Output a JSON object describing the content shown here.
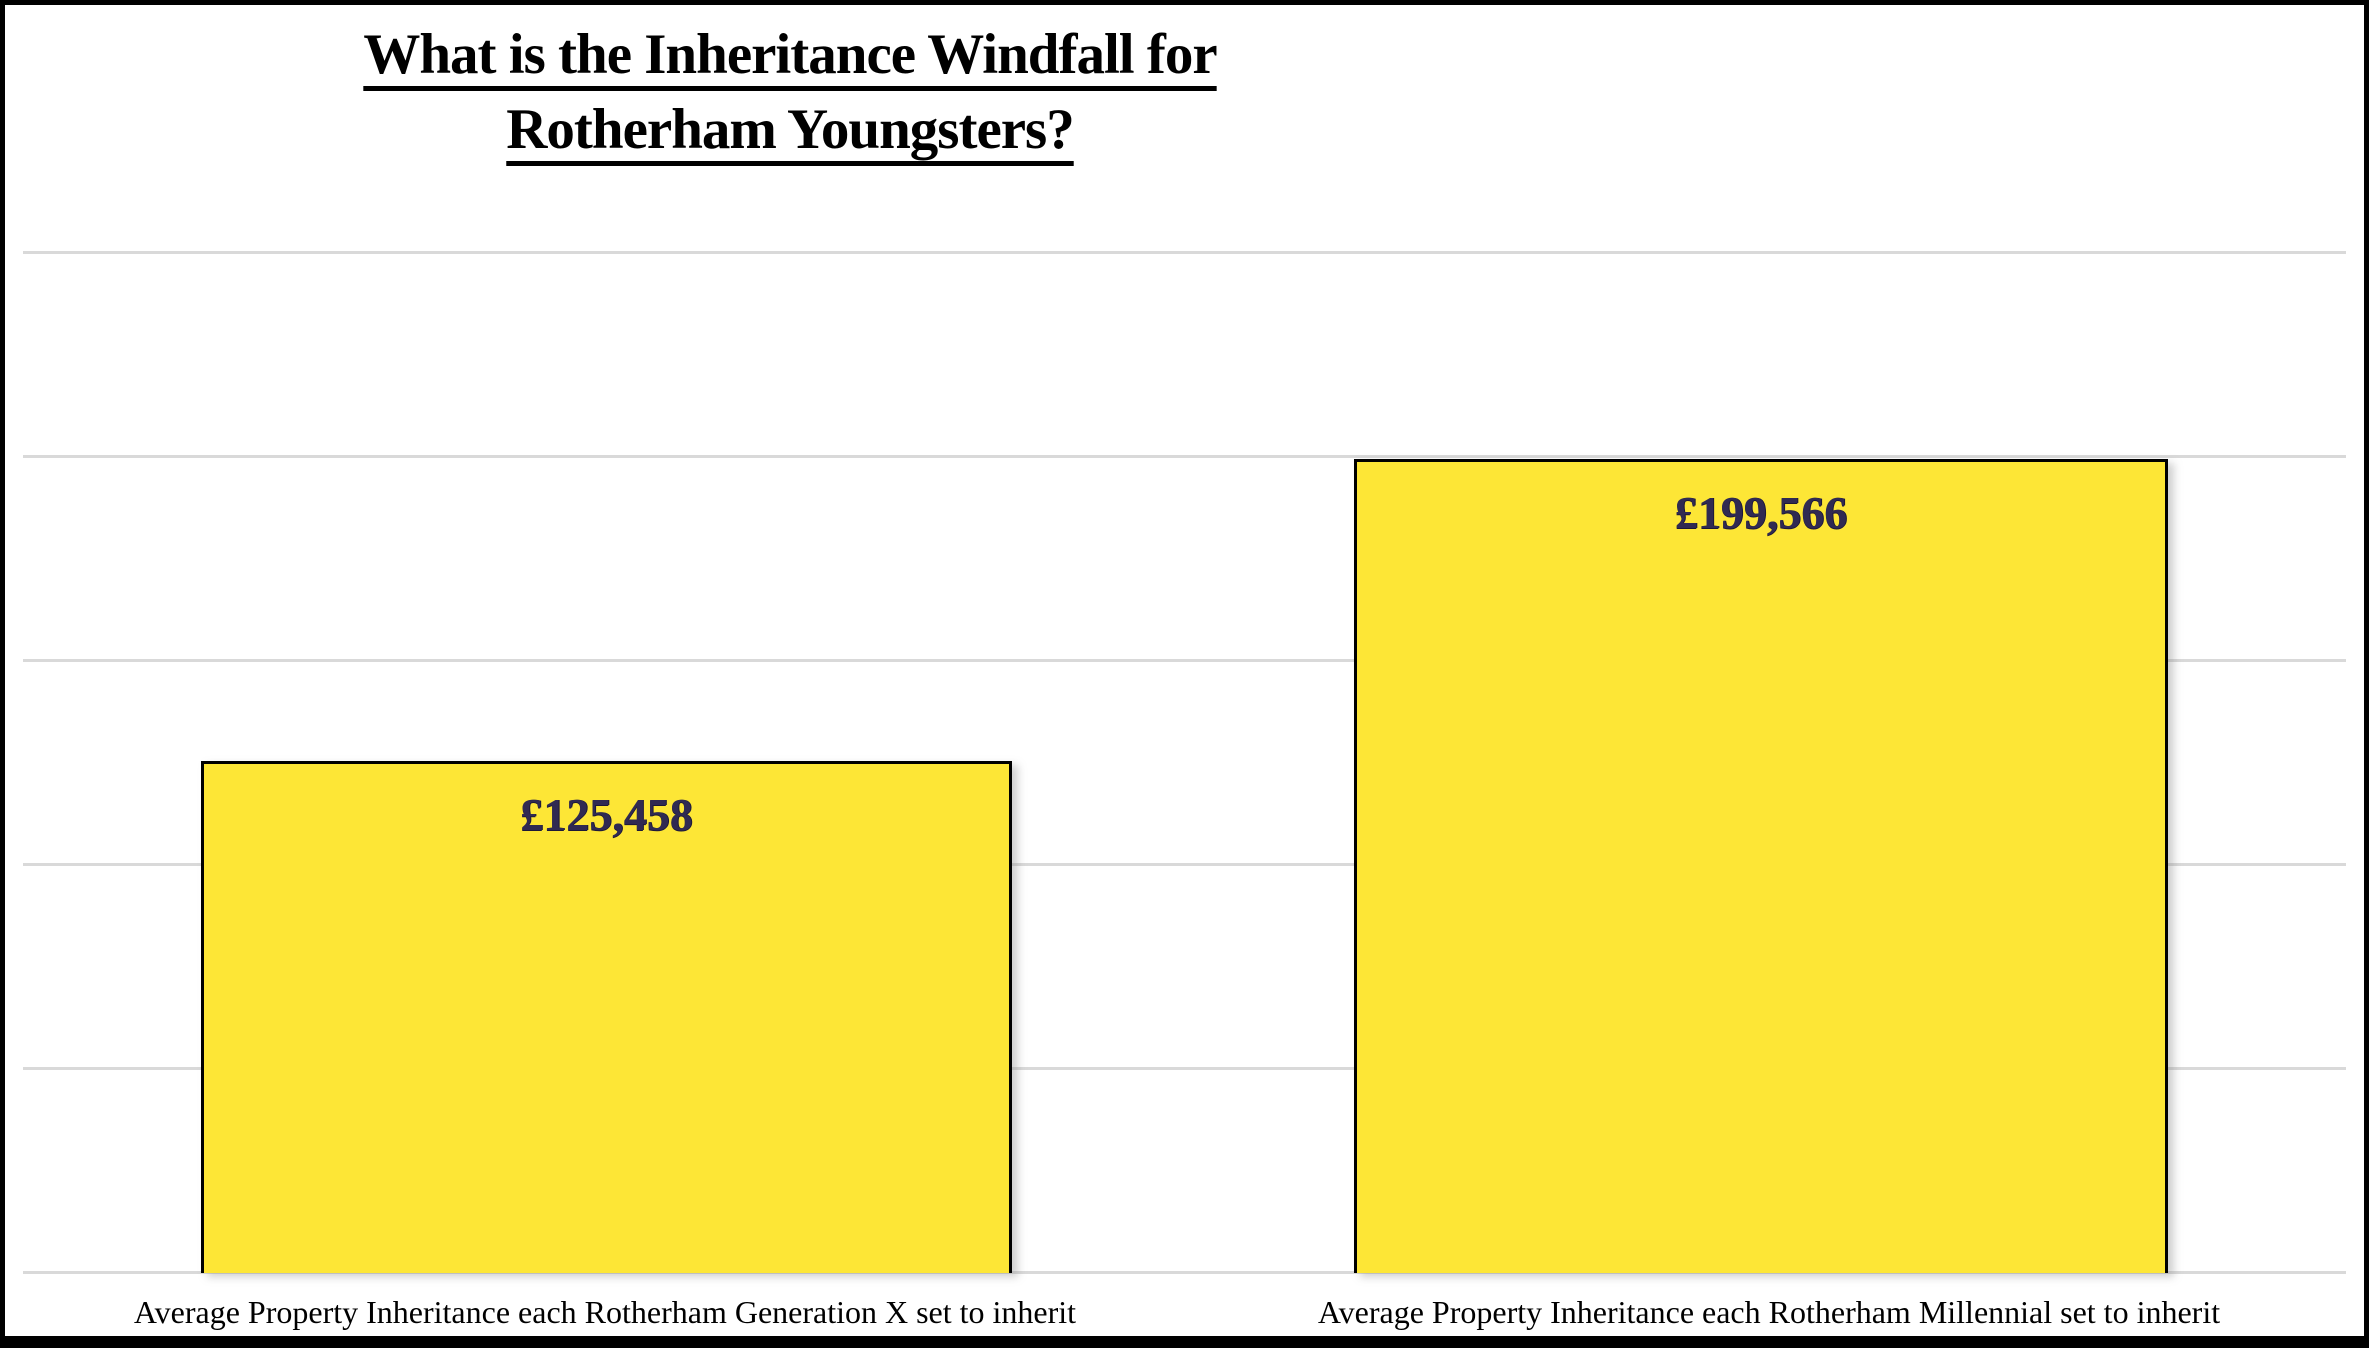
{
  "title": {
    "line1": "What is the Inheritance Windfall for",
    "line2": "Rotherham Youngsters?"
  },
  "chart_data": {
    "type": "bar",
    "title": "What is the Inheritance Windfall for Rotherham Youngsters?",
    "categories": [
      "Average Property Inheritance each Rotherham Generation X set to inherit",
      "Average Property Inheritance each Rotherham Millennial set to inherit"
    ],
    "values": [
      125458,
      199566
    ],
    "value_labels": [
      "£125,458",
      "£199,566"
    ],
    "currency": "GBP",
    "ylim": [
      0,
      250000
    ],
    "gridline_step": 50000,
    "grid": true,
    "legend": false,
    "y_axis_labels_visible": false,
    "value_label_position": "inside-top",
    "colors": {
      "bar_fill": "#FDE636",
      "bar_border": "#000000",
      "value_label": "#302A52",
      "gridline": "#D9D9D9",
      "background": "#FFFFFF",
      "frame_border": "#000000",
      "title_text": "#000000",
      "axis_label_text": "#000000"
    }
  }
}
